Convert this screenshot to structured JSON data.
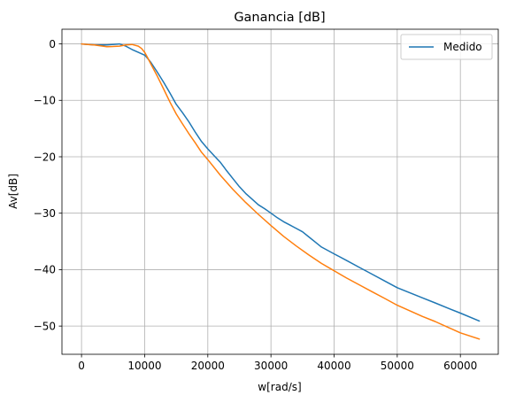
{
  "chart_data": {
    "type": "line",
    "title": "Ganancia [dB]",
    "xlabel": "w[rad/s]",
    "ylabel": "Av[dB]",
    "xlim": [
      -3100,
      66000
    ],
    "ylim": [
      -55,
      2.6
    ],
    "xticks": [
      0,
      10000,
      20000,
      30000,
      40000,
      50000,
      60000
    ],
    "yticks": [
      0,
      -10,
      -20,
      -30,
      -40,
      -50
    ],
    "grid": true,
    "legend": {
      "position": "top-right",
      "entries": [
        "Medido"
      ]
    },
    "series": [
      {
        "name": "Medido",
        "color": "#1f77b4",
        "x": [
          0,
          2000,
          4000,
          6000,
          7000,
          8000,
          9000,
          10000,
          10500,
          11000,
          12000,
          13000,
          14000,
          15000,
          16000,
          17000,
          18000,
          19000,
          20000,
          21000,
          22000,
          23000,
          24000,
          25000,
          26000,
          27000,
          28000,
          29000,
          30000,
          31000,
          32000,
          33000,
          34000,
          35000,
          36000,
          37000,
          38000,
          40000,
          42000,
          44000,
          46000,
          48000,
          50000,
          52000,
          54000,
          56000,
          58000,
          60000,
          63000
        ],
        "y": [
          0,
          -0.2,
          -0.2,
          0,
          -0.4,
          -1.0,
          -1.5,
          -2.0,
          -2.6,
          -3.3,
          -5.0,
          -6.8,
          -8.7,
          -10.7,
          -12.2,
          -13.8,
          -15.6,
          -17.3,
          -18.6,
          -19.8,
          -21.0,
          -22.5,
          -23.9,
          -25.3,
          -26.5,
          -27.5,
          -28.5,
          -29.2,
          -30.0,
          -30.8,
          -31.5,
          -32.1,
          -32.7,
          -33.3,
          -34.2,
          -35.1,
          -36.0,
          -37.2,
          -38.4,
          -39.6,
          -40.8,
          -42.0,
          -43.2,
          -44.1,
          -45.0,
          -45.9,
          -46.8,
          -47.7,
          -49.1
        ]
      },
      {
        "name": "",
        "color": "#ff7f0e",
        "x": [
          0,
          1000,
          2000,
          4000,
          6000,
          7000,
          8000,
          9000,
          9500,
          10000,
          10500,
          11000,
          12000,
          13000,
          14000,
          15000,
          16000,
          17000,
          18000,
          19000,
          20000,
          22000,
          24000,
          26000,
          28000,
          30000,
          32000,
          34000,
          36000,
          38000,
          40000,
          42000,
          44000,
          46000,
          48000,
          50000,
          52000,
          54000,
          56000,
          58000,
          60000,
          63000
        ],
        "y": [
          0,
          -0.1,
          -0.2,
          -0.5,
          -0.4,
          -0.2,
          -0.1,
          -0.4,
          -0.8,
          -1.5,
          -2.5,
          -3.6,
          -5.7,
          -8.0,
          -10.3,
          -12.4,
          -14.2,
          -15.9,
          -17.5,
          -19.2,
          -20.5,
          -23.3,
          -25.8,
          -28.1,
          -30.2,
          -32.2,
          -34.1,
          -35.8,
          -37.4,
          -38.9,
          -40.2,
          -41.5,
          -42.7,
          -43.9,
          -45.1,
          -46.3,
          -47.3,
          -48.3,
          -49.2,
          -50.2,
          -51.2,
          -52.3
        ]
      }
    ]
  }
}
